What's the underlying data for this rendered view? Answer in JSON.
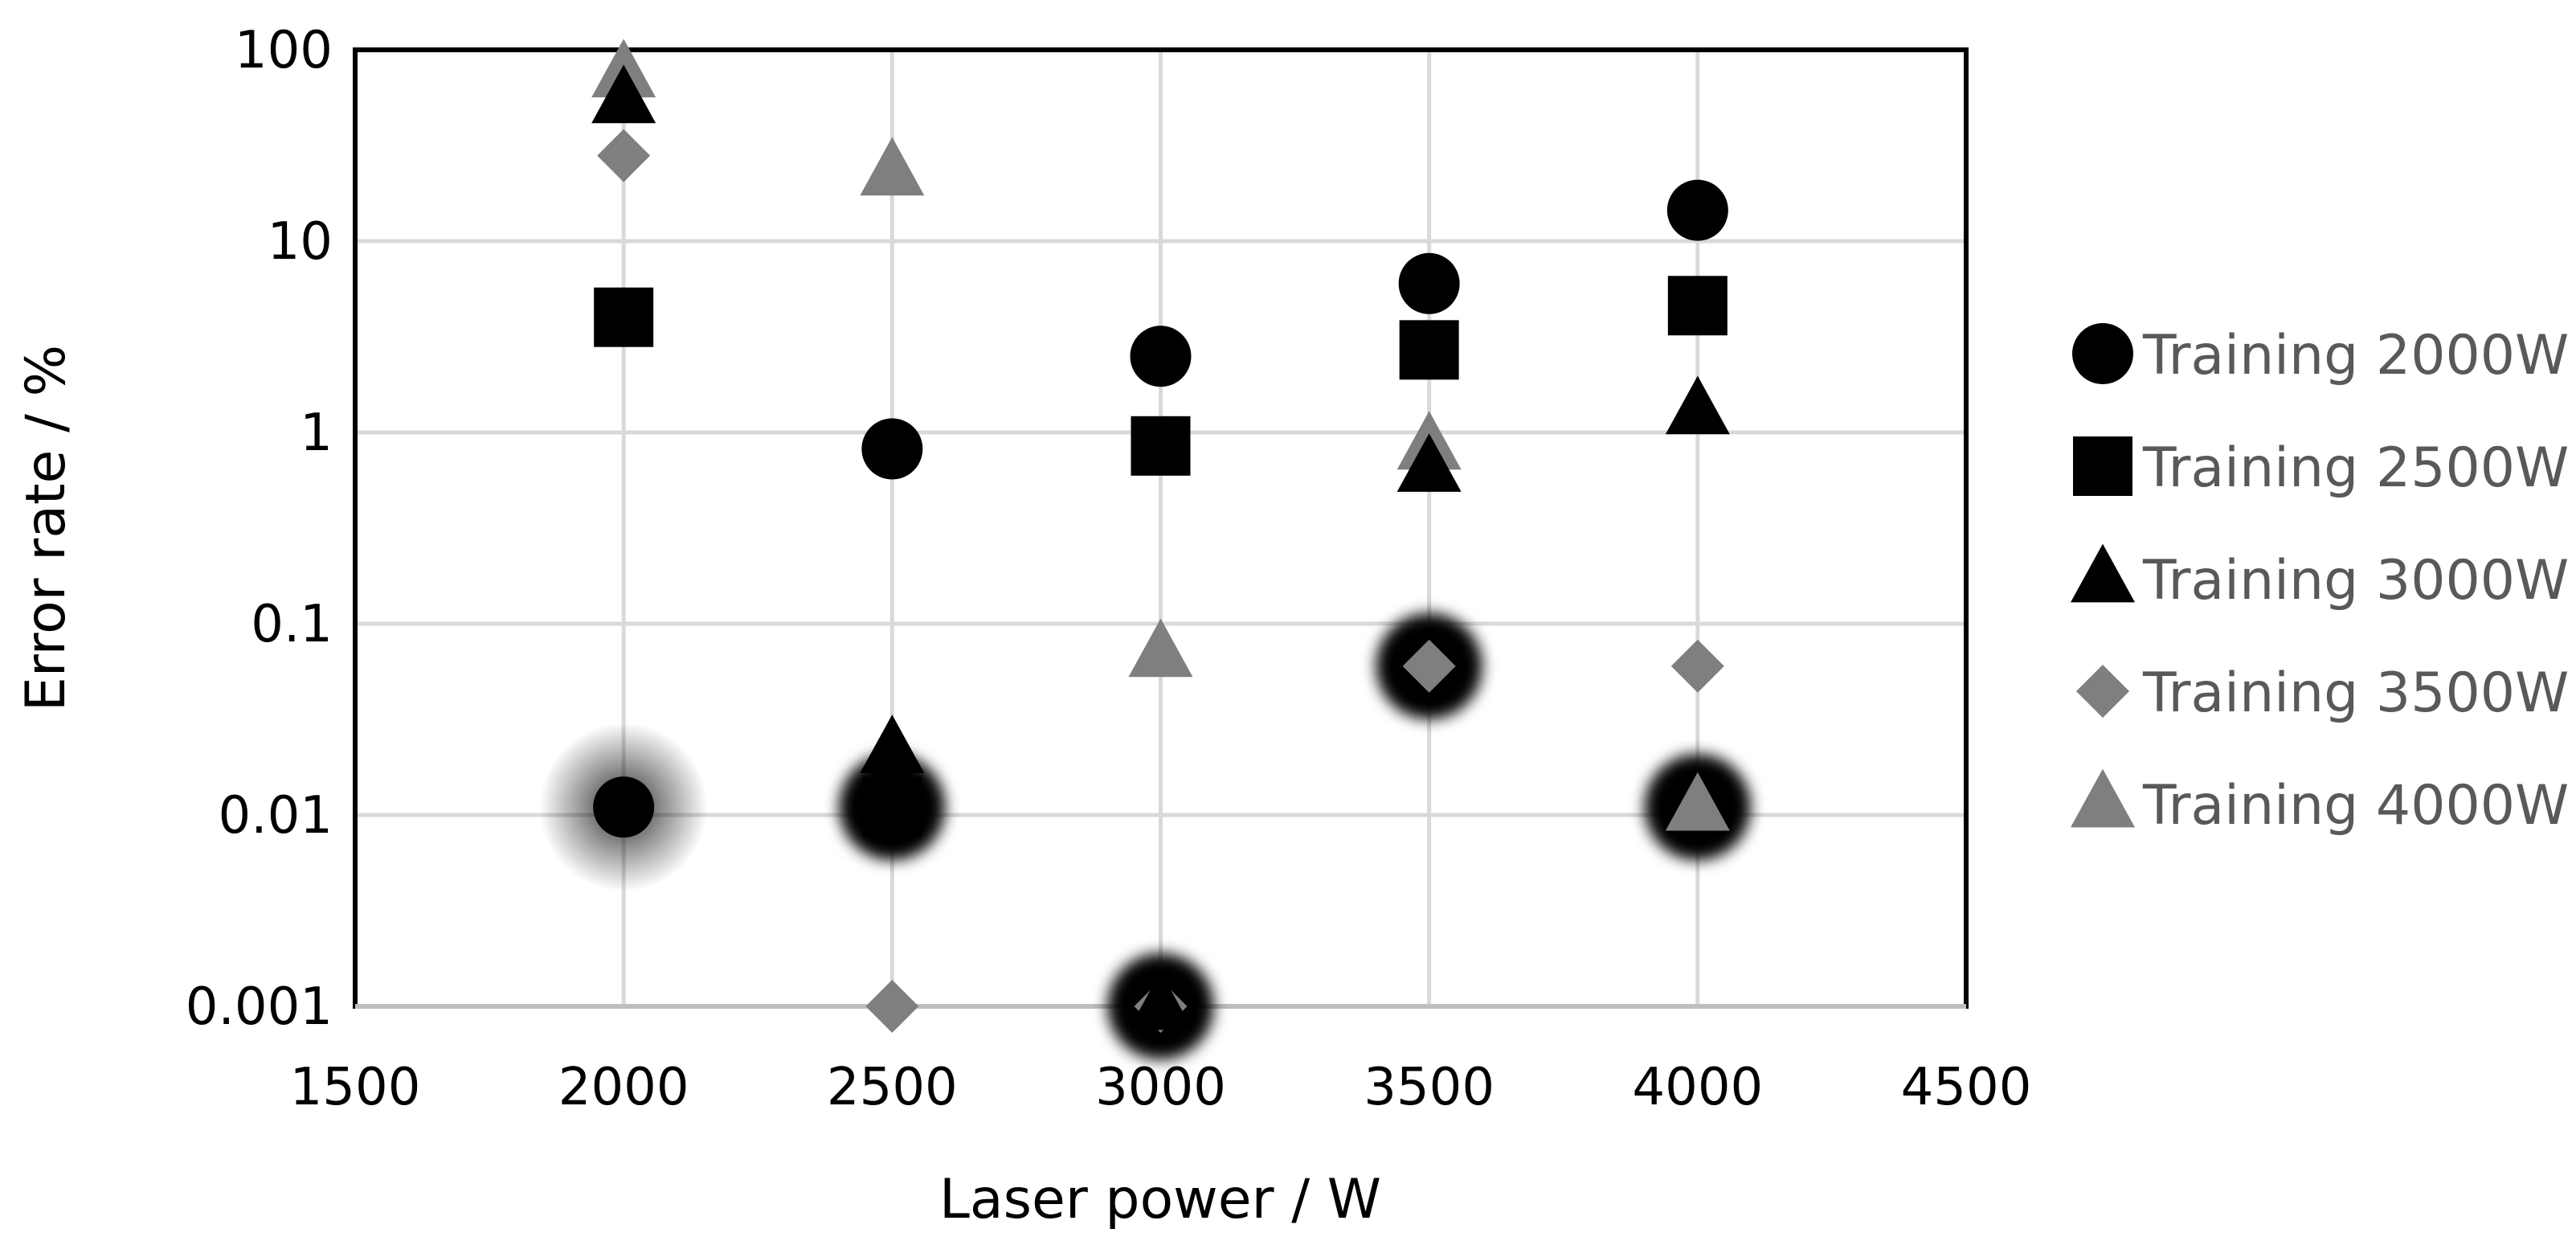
{
  "chart_data": {
    "type": "scatter",
    "title": "",
    "xlabel": "Laser power / W",
    "ylabel": "Error rate / %",
    "xlim": [
      1500,
      4500
    ],
    "x_ticks": [
      1500,
      2000,
      2500,
      3000,
      3500,
      4000,
      4500
    ],
    "x_tick_labels": [
      "1500",
      "2000",
      "2500",
      "3000",
      "3500",
      "4000",
      "4500"
    ],
    "y_scale": "log",
    "ylim": [
      0.001,
      100
    ],
    "y_ticks": [
      0.001,
      0.01,
      0.1,
      1,
      10,
      100
    ],
    "y_tick_labels": [
      "0.001",
      "0.01",
      "0.1",
      "1",
      "10",
      "100"
    ],
    "grid": true,
    "legend_position": "right",
    "series": [
      {
        "name": "Training 2000W",
        "marker": "circle",
        "color": "#000000",
        "points": [
          {
            "x": 2000,
            "y": 0.011,
            "highlighted": true
          },
          {
            "x": 2500,
            "y": 0.82
          },
          {
            "x": 3000,
            "y": 2.5
          },
          {
            "x": 3500,
            "y": 6.0
          },
          {
            "x": 4000,
            "y": 14.5
          }
        ]
      },
      {
        "name": "Training 2500W",
        "marker": "square",
        "color": "#000000",
        "points": [
          {
            "x": 2000,
            "y": 4.0
          },
          {
            "x": 2500,
            "y": 0.011,
            "highlighted": true
          },
          {
            "x": 3000,
            "y": 0.85
          },
          {
            "x": 3500,
            "y": 2.7
          },
          {
            "x": 4000,
            "y": 4.6
          }
        ]
      },
      {
        "name": "Training 3000W",
        "marker": "triangle",
        "color": "#000000",
        "points": [
          {
            "x": 2000,
            "y": 55
          },
          {
            "x": 2500,
            "y": 0.022
          },
          {
            "x": 3000,
            "y": 0.001,
            "highlighted": true
          },
          {
            "x": 3500,
            "y": 0.65
          },
          {
            "x": 4000,
            "y": 1.3
          }
        ]
      },
      {
        "name": "Training 3500W",
        "marker": "diamond",
        "color": "#7f7f7f",
        "points": [
          {
            "x": 2000,
            "y": 28
          },
          {
            "x": 2500,
            "y": 0.001
          },
          {
            "x": 3000,
            "y": 0.001
          },
          {
            "x": 3500,
            "y": 0.06,
            "highlighted": true
          },
          {
            "x": 4000,
            "y": 0.06
          }
        ]
      },
      {
        "name": "Training 4000W",
        "marker": "triangle",
        "color": "#7f7f7f",
        "points": [
          {
            "x": 2000,
            "y": 75
          },
          {
            "x": 2500,
            "y": 23
          },
          {
            "x": 3000,
            "y": 0.07
          },
          {
            "x": 3500,
            "y": 0.85
          },
          {
            "x": 4000,
            "y": 0.011,
            "highlighted": true
          }
        ]
      }
    ]
  }
}
